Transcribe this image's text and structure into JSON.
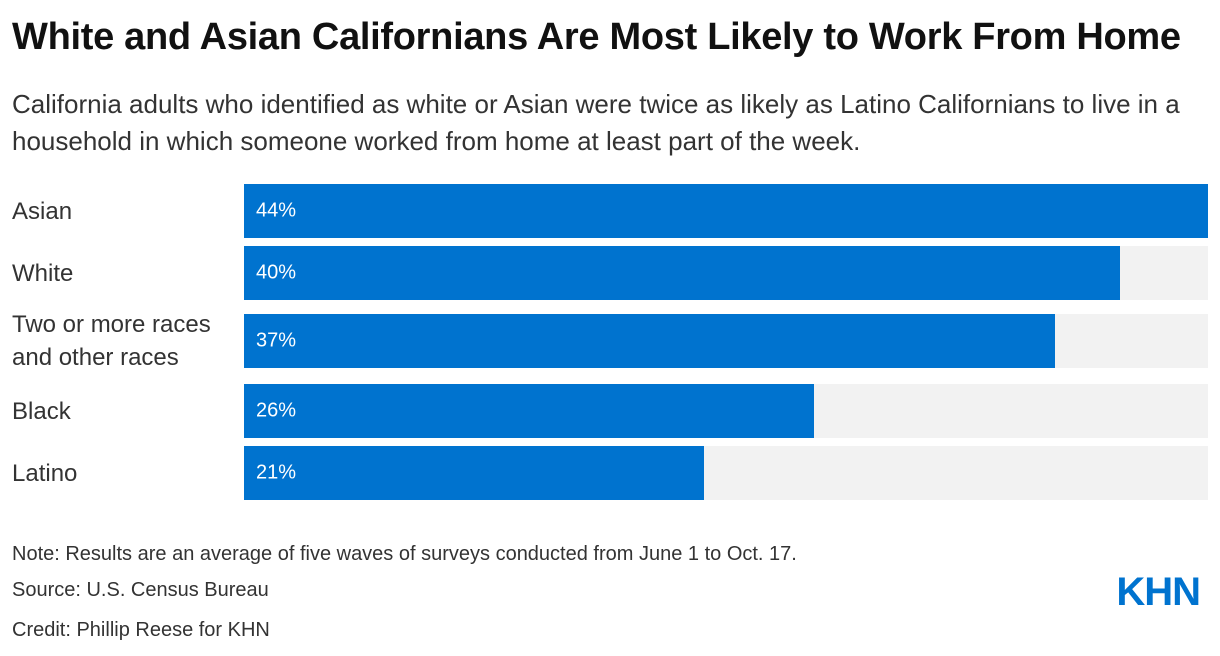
{
  "title": "White and Asian Californians Are Most Likely to Work From Home",
  "subtitle": "California adults who identified as white or Asian were twice as likely as Latino Californians to live in a household in which someone worked from home at least part of the week.",
  "chart_data": {
    "type": "bar",
    "orientation": "horizontal",
    "title": "White and Asian Californians Are Most Likely to Work From Home",
    "categories": [
      "Asian",
      "White",
      "Two or more races and other races",
      "Black",
      "Latino"
    ],
    "values": [
      44,
      40,
      37,
      26,
      21
    ],
    "value_labels": [
      "44%",
      "40%",
      "37%",
      "26%",
      "21%"
    ],
    "unit": "%",
    "xlim": [
      0,
      44
    ],
    "xlabel": "",
    "ylabel": "",
    "bar_color": "#0073cf",
    "track_color": "#f2f2f2"
  },
  "footer": {
    "note": "Note: Results are an average of five waves of surveys conducted from June 1 to Oct. 17.",
    "source": "Source: U.S. Census Bureau",
    "credit": "Credit: Phillip Reese for KHN"
  },
  "logo": {
    "text": "KHN",
    "color": "#0073cf"
  }
}
